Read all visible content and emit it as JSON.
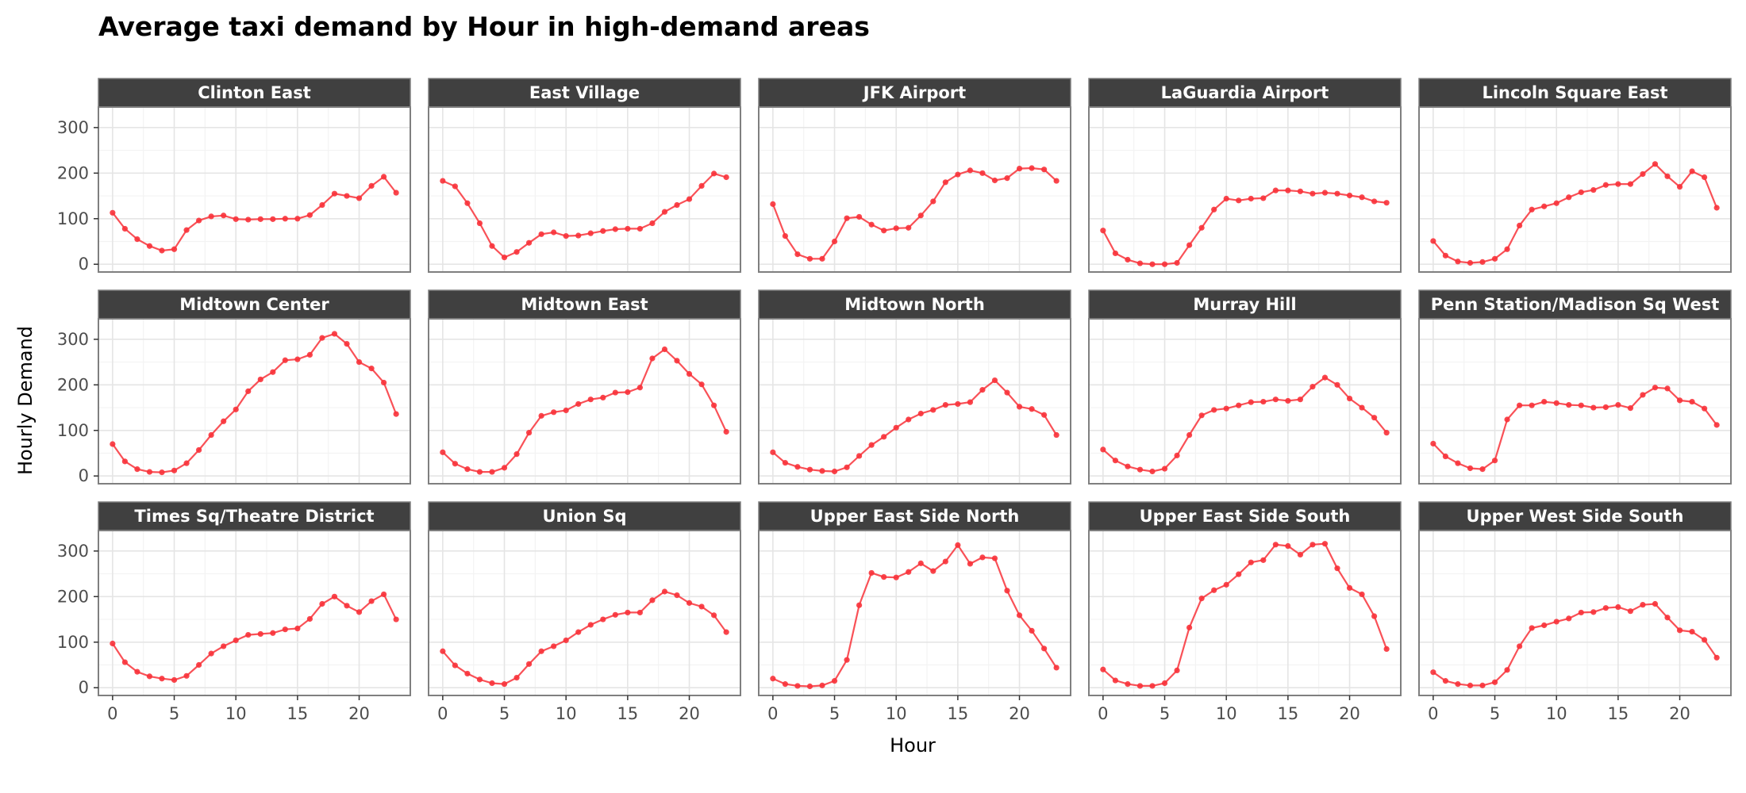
{
  "chart_data": {
    "type": "line",
    "title": "Average taxi demand by Hour in high-demand areas",
    "xlabel": "Hour",
    "ylabel": "Hourly Demand",
    "x": [
      0,
      1,
      2,
      3,
      4,
      5,
      6,
      7,
      8,
      9,
      10,
      11,
      12,
      13,
      14,
      15,
      16,
      17,
      18,
      19,
      20,
      21,
      22,
      23
    ],
    "x_ticks": [
      0,
      5,
      10,
      15,
      20
    ],
    "y_ticks": [
      0,
      100,
      200,
      300
    ],
    "xlim": [
      -1.15,
      24.15
    ],
    "ylim": [
      -17,
      345
    ],
    "grid": true,
    "legend": "none",
    "line_color": "#f8323a",
    "strip_color": "#404040",
    "strip_text_color": "#ffffff",
    "panel_border_color": "#7f7f7f",
    "major_grid_color": "#e5e5e5",
    "minor_grid_color": "#f3f3f3",
    "tick_label_color": "#4d4d4d",
    "facets": [
      {
        "label": "Clinton East",
        "values": [
          113,
          78,
          55,
          40,
          30,
          33,
          75,
          96,
          105,
          107,
          99,
          98,
          99,
          99,
          100,
          100,
          108,
          130,
          155,
          150,
          145,
          172,
          192,
          157
        ]
      },
      {
        "label": "East Village",
        "values": [
          183,
          171,
          134,
          90,
          40,
          15,
          27,
          47,
          66,
          70,
          62,
          63,
          68,
          73,
          77,
          78,
          78,
          90,
          115,
          130,
          143,
          172,
          199,
          191
        ]
      },
      {
        "label": "JFK Airport",
        "values": [
          132,
          62,
          22,
          12,
          12,
          50,
          101,
          104,
          87,
          74,
          79,
          80,
          107,
          138,
          180,
          197,
          206,
          200,
          184,
          189,
          210,
          211,
          208,
          183
        ]
      },
      {
        "label": "LaGuardia Airport",
        "values": [
          74,
          24,
          10,
          2,
          0,
          0,
          3,
          42,
          80,
          120,
          144,
          140,
          144,
          145,
          162,
          162,
          160,
          155,
          157,
          155,
          151,
          147,
          138,
          135
        ]
      },
      {
        "label": "Lincoln Square East",
        "values": [
          51,
          19,
          6,
          3,
          5,
          12,
          33,
          85,
          120,
          127,
          134,
          147,
          158,
          163,
          174,
          176,
          176,
          198,
          220,
          193,
          170,
          204,
          191,
          124
        ]
      },
      {
        "label": "Midtown Center",
        "values": [
          70,
          32,
          15,
          9,
          8,
          12,
          28,
          57,
          90,
          120,
          146,
          186,
          212,
          228,
          254,
          256,
          266,
          303,
          312,
          290,
          250,
          236,
          205,
          136
        ]
      },
      {
        "label": "Midtown East",
        "values": [
          52,
          27,
          15,
          9,
          9,
          18,
          48,
          95,
          132,
          140,
          144,
          158,
          168,
          172,
          183,
          184,
          194,
          258,
          278,
          253,
          224,
          201,
          155,
          97
        ]
      },
      {
        "label": "Midtown North",
        "values": [
          52,
          29,
          20,
          14,
          11,
          10,
          19,
          44,
          68,
          86,
          106,
          124,
          137,
          145,
          156,
          158,
          162,
          189,
          210,
          183,
          152,
          147,
          134,
          90
        ]
      },
      {
        "label": "Murray Hill",
        "values": [
          58,
          34,
          21,
          14,
          10,
          16,
          45,
          90,
          133,
          145,
          148,
          155,
          162,
          163,
          168,
          165,
          168,
          196,
          216,
          200,
          170,
          150,
          128,
          95
        ]
      },
      {
        "label": "Penn Station/Madison Sq West",
        "values": [
          71,
          43,
          28,
          17,
          15,
          34,
          124,
          155,
          155,
          163,
          160,
          156,
          155,
          150,
          151,
          156,
          149,
          178,
          194,
          192,
          166,
          163,
          148,
          112
        ]
      },
      {
        "label": "Times Sq/Theatre District",
        "values": [
          97,
          56,
          35,
          25,
          20,
          17,
          26,
          50,
          75,
          91,
          104,
          116,
          118,
          120,
          128,
          130,
          151,
          184,
          200,
          180,
          166,
          190,
          205,
          150
        ]
      },
      {
        "label": "Union Sq",
        "values": [
          80,
          49,
          31,
          18,
          10,
          8,
          22,
          52,
          80,
          91,
          104,
          122,
          138,
          150,
          160,
          165,
          165,
          192,
          211,
          203,
          186,
          178,
          159,
          122
        ]
      },
      {
        "label": "Upper East Side North",
        "values": [
          20,
          8,
          4,
          3,
          5,
          15,
          61,
          181,
          252,
          243,
          242,
          254,
          273,
          256,
          277,
          313,
          272,
          286,
          284,
          213,
          159,
          125,
          86,
          44
        ]
      },
      {
        "label": "Upper East Side South",
        "values": [
          40,
          16,
          8,
          4,
          4,
          10,
          38,
          132,
          196,
          214,
          226,
          249,
          275,
          280,
          314,
          311,
          292,
          314,
          316,
          262,
          219,
          205,
          157,
          85
        ]
      },
      {
        "label": "Upper West Side South",
        "values": [
          34,
          15,
          8,
          5,
          5,
          12,
          39,
          91,
          131,
          137,
          145,
          152,
          165,
          166,
          175,
          177,
          168,
          182,
          184,
          154,
          126,
          123,
          105,
          66
        ]
      }
    ]
  }
}
